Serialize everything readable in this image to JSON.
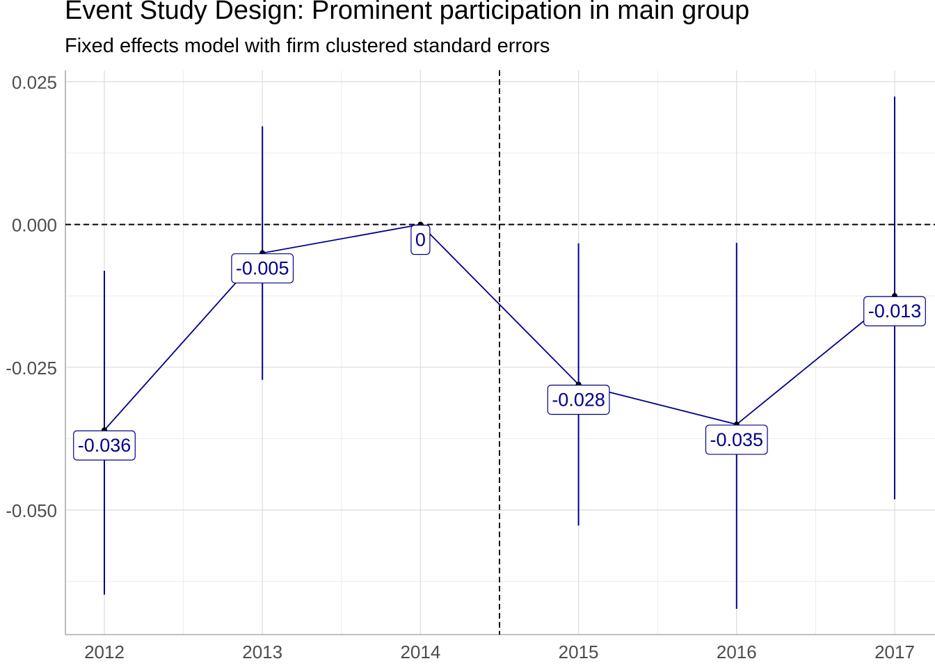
{
  "chart_data": {
    "type": "line",
    "title": "Event Study Design: Prominent participation in main group",
    "subtitle": "Fixed effects model with firm clustered standard errors",
    "xlabel": "",
    "ylabel": "",
    "categories": [
      "2012",
      "2013",
      "2014",
      "2015",
      "2016",
      "2017"
    ],
    "series": [
      {
        "values": [
          -0.036,
          -0.005,
          0,
          -0.028,
          -0.035,
          -0.0125
        ],
        "ci_low": [
          -0.0648,
          -0.0272,
          0,
          -0.0527,
          -0.0673,
          -0.0481
        ],
        "ci_high": [
          -0.0081,
          0.0172,
          0,
          -0.0033,
          -0.0032,
          0.0224
        ],
        "labels": [
          "-0.036",
          "-0.005",
          "0",
          "-0.028",
          "-0.035",
          "-0.013"
        ]
      }
    ],
    "ylim": [
      -0.0718,
      0.027
    ],
    "yticks": [
      "0.025",
      "0.000",
      "-0.025",
      "-0.050"
    ],
    "ytick_values": [
      0.025,
      0.0,
      -0.025,
      -0.05
    ],
    "hline": 0,
    "vline": 2.5,
    "grid": true,
    "colors": {
      "line": "#00008B",
      "point": "#000000",
      "label_text": "#00008B",
      "grid": "#DEDEDE",
      "reference": "#000000",
      "tick_text": "#4D4D4D"
    }
  }
}
